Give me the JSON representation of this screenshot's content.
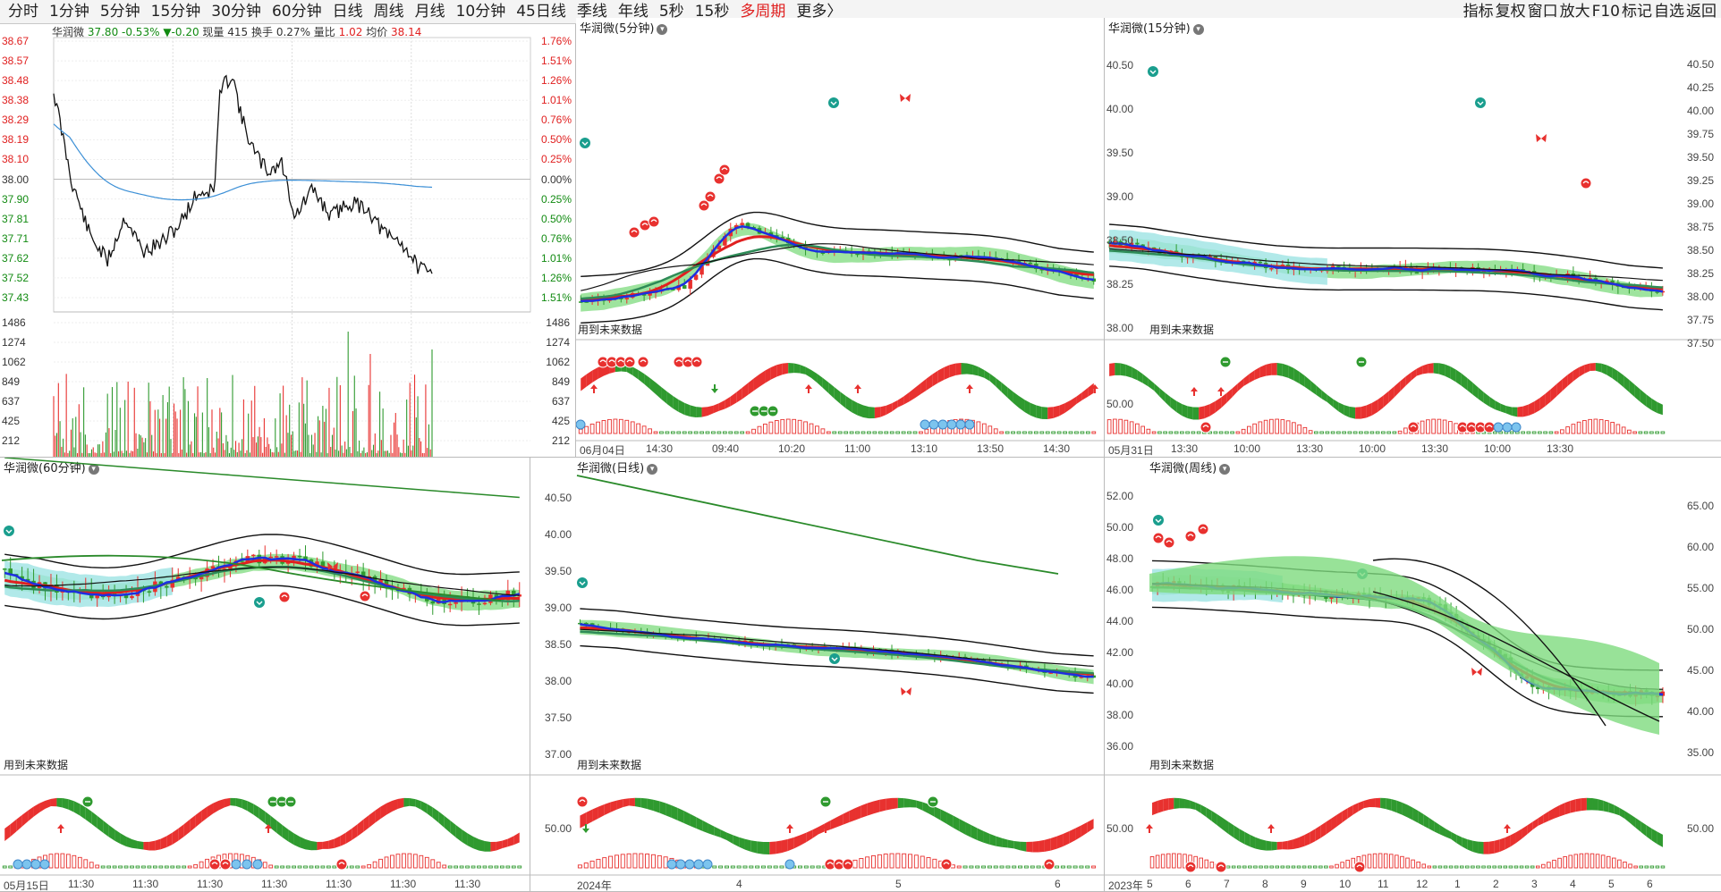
{
  "toolbar": {
    "periods": [
      "分时",
      "1分钟",
      "5分钟",
      "15分钟",
      "30分钟",
      "60分钟",
      "日线",
      "周线",
      "月线",
      "10分钟",
      "45日线",
      "季线",
      "年线",
      "5秒",
      "15秒",
      "多周期",
      "更多"
    ],
    "more_suffix": "〉",
    "tools": [
      "指标",
      "复权",
      "窗口",
      "放大",
      "F10",
      "标记",
      "自选",
      "返回"
    ]
  },
  "colors": {
    "up": "#e8312f",
    "down": "#2f9a2f",
    "ma_blue": "#1d2fe0",
    "line_dark": "#111111",
    "avg_blue": "#3b8fd6",
    "fill_green": "#7edb7e",
    "fill_cyan": "#9ee3e3"
  },
  "intraday": {
    "stock": "华润微",
    "price": "37.80",
    "pct": "-0.53%",
    "change": "▼-0.20",
    "volume_label": "现量",
    "volume": "415",
    "turnover_label": "换手",
    "turnover": "0.27%",
    "ratio_label": "量比",
    "ratio": "1.02",
    "avg_label": "均价",
    "avg": "38.14",
    "price_ticks": [
      "38.67",
      "38.57",
      "38.48",
      "38.38",
      "38.29",
      "38.19",
      "38.10",
      "38.00",
      "37.90",
      "37.81",
      "37.71",
      "37.62",
      "37.52",
      "37.43"
    ],
    "pct_ticks": [
      "1.76%",
      "1.51%",
      "1.26%",
      "1.01%",
      "0.76%",
      "0.50%",
      "0.25%",
      "0.00%",
      "0.25%",
      "0.50%",
      "0.76%",
      "1.01%",
      "1.26%",
      "1.51%"
    ],
    "vol_ticks": [
      "1486",
      "1274",
      "1062",
      "849",
      "637",
      "425",
      "212"
    ]
  },
  "panels": [
    {
      "id": "p5",
      "title": "华润微(5分钟)",
      "future": "用到未来数据",
      "price_ticks": [],
      "ind_ticks": [],
      "dates": [
        "06月04日",
        "14:30",
        "09:40",
        "10:20",
        "11:00",
        "13:10",
        "13:50",
        "14:30"
      ]
    },
    {
      "id": "p15",
      "title": "华润微(15分钟)",
      "future": "用到未来数据",
      "price_ticks": [
        "40.50",
        "40.25",
        "40.00",
        "39.75",
        "39.50",
        "39.25",
        "39.00",
        "38.75",
        "38.50",
        "38.25",
        "38.00",
        "37.75",
        "37.50"
      ],
      "left_ticks": [
        "40.50",
        "40.00",
        "39.50",
        "39.00",
        "38.50",
        "38.25",
        "38.00"
      ],
      "ind_ticks": [
        "50.00"
      ],
      "dates": [
        "05月31日",
        "13:30",
        "10:00",
        "13:30",
        "10:00",
        "13:30",
        "10:00",
        "13:30"
      ]
    },
    {
      "id": "p60",
      "title": "华润微(60分钟)",
      "future": "用到未来数据",
      "price_ticks": [],
      "ind_ticks": [],
      "dates": [
        "05月15日",
        "11:30",
        "11:30",
        "11:30",
        "11:30",
        "11:30",
        "11:30",
        "11:30"
      ]
    },
    {
      "id": "pday",
      "title": "华润微(日线)",
      "future": "用到未来数据",
      "price_ticks": [
        "40.50",
        "40.00",
        "39.50",
        "39.00",
        "38.50",
        "38.00",
        "37.50",
        "37.00"
      ],
      "ind_ticks": [
        "50.00"
      ],
      "dates": [
        "2024年",
        "4",
        "5",
        "6"
      ]
    },
    {
      "id": "pweek",
      "title": "华润微(周线)",
      "future": "用到未来数据",
      "left_ticks": [
        "52.00",
        "50.00",
        "48.00",
        "46.00",
        "44.00",
        "42.00",
        "40.00",
        "38.00",
        "36.00"
      ],
      "price_ticks": [
        "65.00",
        "60.00",
        "55.00",
        "50.00",
        "45.00",
        "40.00",
        "35.00"
      ],
      "ind_ticks": [
        "50.00",
        "50.00"
      ],
      "dates": [
        "2023年",
        "5",
        "6",
        "7",
        "8",
        "9",
        "10",
        "11",
        "12",
        "1",
        "2",
        "3",
        "4",
        "5",
        "6"
      ]
    }
  ]
}
